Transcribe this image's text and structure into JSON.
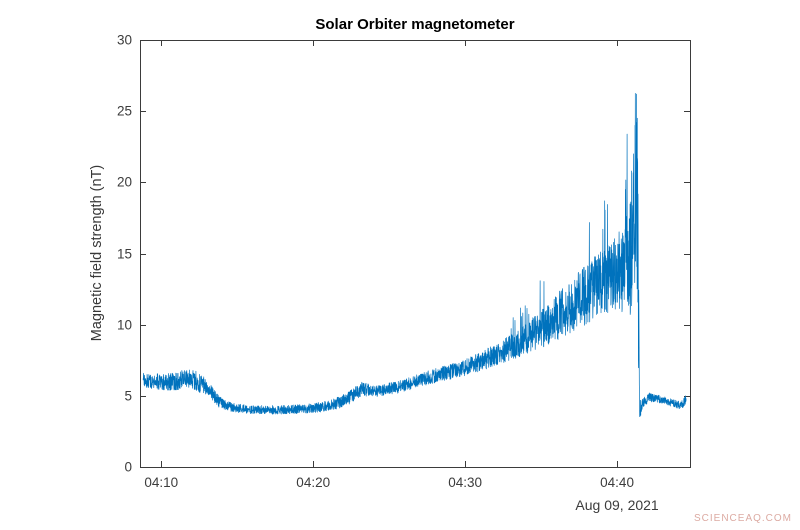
{
  "figure": {
    "background": "#ffffff"
  },
  "chart_data": {
    "type": "line",
    "title": "Solar Orbiter magnetometer",
    "ylabel": "Magnetic field strength (nT)",
    "xlabel_secondary": "Aug 09, 2021",
    "line_color": "#0072BD",
    "axis_color": "#3b3b3b",
    "ylim": [
      0,
      30
    ],
    "y_ticks": [
      0,
      5,
      10,
      15,
      20,
      25,
      30
    ],
    "x_domain_minutes": [
      8.6,
      44.8
    ],
    "x_ticks": [
      {
        "minute": 10,
        "label": "04:10"
      },
      {
        "minute": 20,
        "label": "04:20"
      },
      {
        "minute": 30,
        "label": "04:30"
      },
      {
        "minute": 40,
        "label": "04:40"
      }
    ],
    "grid": false,
    "legend": "none",
    "series_name": "magnetic field strength",
    "series_anchors_t_base_noise": [
      [
        8.8,
        6.1,
        0.55
      ],
      [
        9.6,
        6.0,
        0.6
      ],
      [
        10.6,
        6.0,
        0.7
      ],
      [
        11.6,
        6.2,
        0.8
      ],
      [
        12.4,
        6.0,
        0.8
      ],
      [
        13.0,
        5.6,
        0.6
      ],
      [
        13.8,
        4.6,
        0.45
      ],
      [
        14.6,
        4.2,
        0.35
      ],
      [
        15.6,
        4.05,
        0.35
      ],
      [
        17.0,
        4.0,
        0.35
      ],
      [
        18.5,
        4.05,
        0.35
      ],
      [
        19.5,
        4.1,
        0.35
      ],
      [
        20.5,
        4.2,
        0.4
      ],
      [
        21.5,
        4.45,
        0.45
      ],
      [
        22.3,
        4.8,
        0.5
      ],
      [
        23.2,
        5.5,
        0.55
      ],
      [
        24.0,
        5.3,
        0.45
      ],
      [
        25.0,
        5.5,
        0.45
      ],
      [
        26.0,
        5.7,
        0.5
      ],
      [
        27.0,
        6.1,
        0.55
      ],
      [
        28.0,
        6.4,
        0.55
      ],
      [
        29.0,
        6.7,
        0.6
      ],
      [
        30.0,
        7.0,
        0.65
      ],
      [
        31.0,
        7.4,
        0.75
      ],
      [
        32.0,
        7.9,
        0.85
      ],
      [
        33.0,
        8.4,
        1.0
      ],
      [
        34.0,
        9.0,
        1.2
      ],
      [
        35.0,
        9.7,
        1.5
      ],
      [
        36.0,
        10.5,
        1.8
      ],
      [
        37.0,
        11.3,
        2.1
      ],
      [
        38.0,
        12.2,
        2.4
      ],
      [
        39.0,
        13.0,
        2.6
      ],
      [
        39.8,
        13.4,
        2.9
      ],
      [
        40.4,
        13.9,
        3.4
      ],
      [
        40.9,
        14.8,
        4.6
      ],
      [
        41.15,
        17.0,
        6.0
      ],
      [
        41.32,
        18.5,
        7.0
      ],
      [
        41.4,
        12.0,
        6.5
      ],
      [
        41.48,
        4.0,
        0.8
      ],
      [
        41.7,
        4.4,
        0.5
      ],
      [
        42.1,
        4.9,
        0.35
      ],
      [
        42.7,
        4.8,
        0.3
      ],
      [
        43.3,
        4.6,
        0.3
      ],
      [
        43.8,
        4.45,
        0.3
      ],
      [
        44.2,
        4.3,
        0.3
      ],
      [
        44.55,
        4.75,
        0.35
      ]
    ],
    "explicit_peaks_t_value": [
      [
        40.55,
        19.5
      ],
      [
        40.95,
        20.8
      ],
      [
        41.08,
        22.0
      ],
      [
        41.18,
        24.0
      ],
      [
        41.27,
        26.2
      ],
      [
        41.33,
        24.5
      ]
    ],
    "value_range_observed": [
      3.0,
      26.2
    ]
  },
  "watermark": {
    "text": "SCIENCEAQ.COM",
    "color": "#dcaaa2"
  }
}
